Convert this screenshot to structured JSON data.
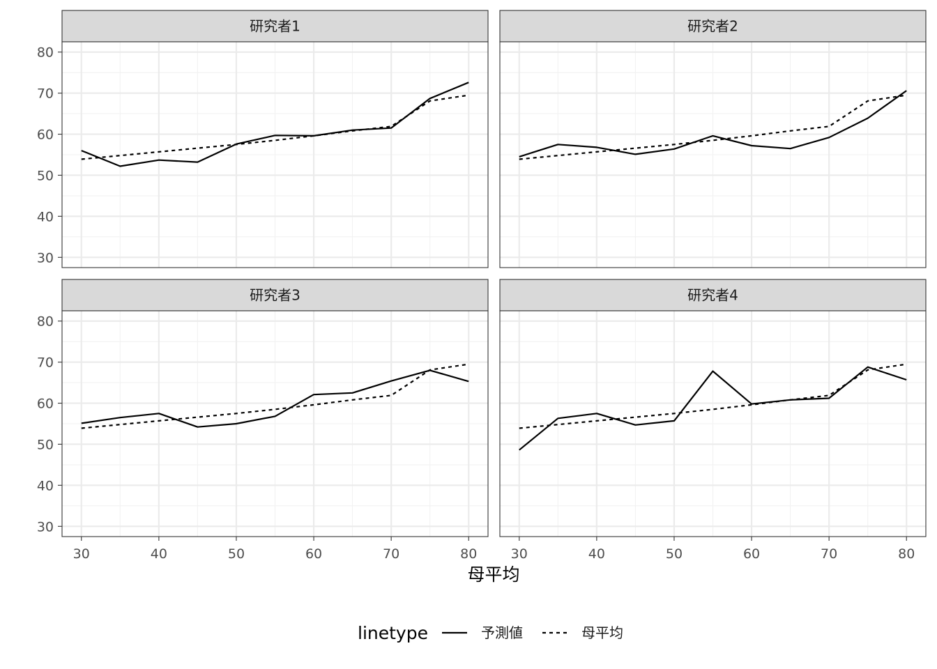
{
  "chart_data": {
    "type": "line",
    "facet_layout": "2x2",
    "xlabel": "母平均",
    "ylabel": "",
    "xlim": [
      27.5,
      82.5
    ],
    "ylim": [
      27.5,
      82.5
    ],
    "x_ticks": [
      30,
      40,
      50,
      60,
      70,
      80
    ],
    "y_ticks": [
      30,
      40,
      50,
      60,
      70,
      80
    ],
    "grid": true,
    "legend": {
      "title": "linetype",
      "placement": "bottom",
      "entries": [
        {
          "label": "予測値",
          "style": "solid"
        },
        {
          "label": "母平均",
          "style": "dashed"
        }
      ]
    },
    "x": [
      30,
      35,
      40,
      45,
      50,
      55,
      60,
      65,
      70,
      75,
      80
    ],
    "panels": [
      {
        "title": "研究者1",
        "series": [
          {
            "name": "予測値",
            "style": "solid",
            "values": [
              56.0,
              52.2,
              53.7,
              53.2,
              57.6,
              59.7,
              59.6,
              61.0,
              61.5,
              68.7,
              72.6
            ]
          },
          {
            "name": "母平均",
            "style": "dashed",
            "values": [
              53.9,
              54.8,
              55.7,
              56.6,
              57.5,
              58.5,
              59.6,
              60.8,
              61.9,
              68.1,
              69.5
            ]
          }
        ]
      },
      {
        "title": "研究者2",
        "series": [
          {
            "name": "予測値",
            "style": "solid",
            "values": [
              54.5,
              57.5,
              56.8,
              55.1,
              56.4,
              59.6,
              57.2,
              56.5,
              59.2,
              63.9,
              70.6
            ]
          },
          {
            "name": "母平均",
            "style": "dashed",
            "values": [
              53.9,
              54.8,
              55.7,
              56.6,
              57.5,
              58.5,
              59.6,
              60.8,
              61.9,
              68.1,
              69.5
            ]
          }
        ]
      },
      {
        "title": "研究者3",
        "series": [
          {
            "name": "予測値",
            "style": "solid",
            "values": [
              55.1,
              56.5,
              57.5,
              54.2,
              55.0,
              56.8,
              62.1,
              62.5,
              65.4,
              68.0,
              65.3
            ]
          },
          {
            "name": "母平均",
            "style": "dashed",
            "values": [
              53.9,
              54.8,
              55.7,
              56.6,
              57.5,
              58.5,
              59.6,
              60.8,
              61.9,
              68.1,
              69.5
            ]
          }
        ]
      },
      {
        "title": "研究者4",
        "series": [
          {
            "name": "予測値",
            "style": "solid",
            "values": [
              48.6,
              56.3,
              57.5,
              54.7,
              55.7,
              67.8,
              59.8,
              60.8,
              61.2,
              68.8,
              65.7
            ]
          },
          {
            "name": "母平均",
            "style": "dashed",
            "values": [
              53.9,
              54.8,
              55.7,
              56.6,
              57.5,
              58.5,
              59.6,
              60.8,
              61.9,
              68.1,
              69.5
            ]
          }
        ]
      }
    ]
  }
}
